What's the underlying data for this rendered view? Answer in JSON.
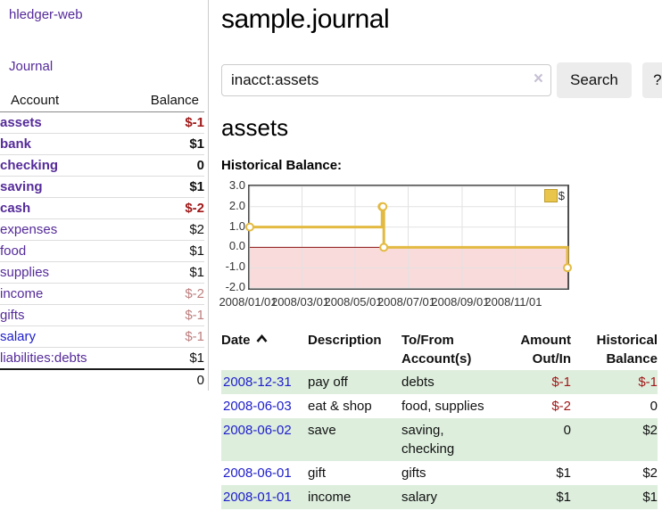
{
  "app": {
    "brand": "hledger-web"
  },
  "sidebar": {
    "nav": [
      {
        "label": "Journal"
      }
    ],
    "accounts_table": {
      "headers": [
        "Account",
        "Balance"
      ],
      "rows": [
        {
          "name": "assets",
          "balance": "$-1"
        },
        {
          "name": "bank",
          "balance": "$1"
        },
        {
          "name": "checking",
          "balance": "0"
        },
        {
          "name": "saving",
          "balance": "$1"
        },
        {
          "name": "cash",
          "balance": "$-2"
        },
        {
          "name": "expenses",
          "balance": "$2"
        },
        {
          "name": "food",
          "balance": "$1"
        },
        {
          "name": "supplies",
          "balance": "$1"
        },
        {
          "name": "income",
          "balance": "$-2"
        },
        {
          "name": "gifts",
          "balance": "$-1"
        },
        {
          "name": "salary",
          "balance": "$-1"
        },
        {
          "name": "liabilities:debts",
          "balance": "$1"
        }
      ],
      "total": "0"
    }
  },
  "main": {
    "title": "sample.journal",
    "search": {
      "value": "inacct:assets",
      "clear_glyph": "×",
      "button_label": "Search",
      "help_label": "?"
    },
    "account_heading": "assets"
  },
  "chart_data": {
    "type": "line",
    "step": true,
    "title": "Historical Balance:",
    "series": [
      {
        "name": "$",
        "x": [
          "2008-01-01",
          "2008-06-01",
          "2008-06-02",
          "2008-06-03",
          "2008-12-31"
        ],
        "values": [
          1,
          2,
          2,
          0,
          -1
        ]
      }
    ],
    "x_domain": [
      "2008-01-01",
      "2008-12-31"
    ],
    "ylim": [
      -2,
      3
    ],
    "y_ticks": [
      "3.0",
      "2.0",
      "1.0",
      "0.0",
      "-1.0",
      "-2.0"
    ],
    "x_ticks": [
      "2008/01/01",
      "2008/03/01",
      "2008/05/01",
      "2008/07/01",
      "2008/09/01",
      "2008/11/01"
    ],
    "grid": true,
    "legend_position": "top-right",
    "colors": {
      "line": "#e3ba41",
      "negative_region": "#fadbdb",
      "zero_line": "#8e1010",
      "grid": "#e2e2e2",
      "legend_swatch": "#e9c54b"
    }
  },
  "transactions": {
    "sort": {
      "column": "Date",
      "direction": "asc",
      "icon": "chevron-up"
    },
    "headers": {
      "date": "Date",
      "description": "Description",
      "accounts": "To/From Account(s)",
      "amount": "Amount Out/In",
      "balance": "Historical Balance"
    },
    "rows": [
      {
        "date": "2008-12-31",
        "description": "pay off",
        "accounts": "debts",
        "amount": "$-1",
        "balance": "$-1"
      },
      {
        "date": "2008-06-03",
        "description": "eat & shop",
        "accounts": "food, supplies",
        "amount": "$-2",
        "balance": "0"
      },
      {
        "date": "2008-06-02",
        "description": "save",
        "accounts": "saving, checking",
        "amount": "0",
        "balance": "$2"
      },
      {
        "date": "2008-06-01",
        "description": "gift",
        "accounts": "gifts",
        "amount": "$1",
        "balance": "$2"
      },
      {
        "date": "2008-01-01",
        "description": "income",
        "accounts": "salary",
        "amount": "$1",
        "balance": "$1"
      }
    ]
  }
}
